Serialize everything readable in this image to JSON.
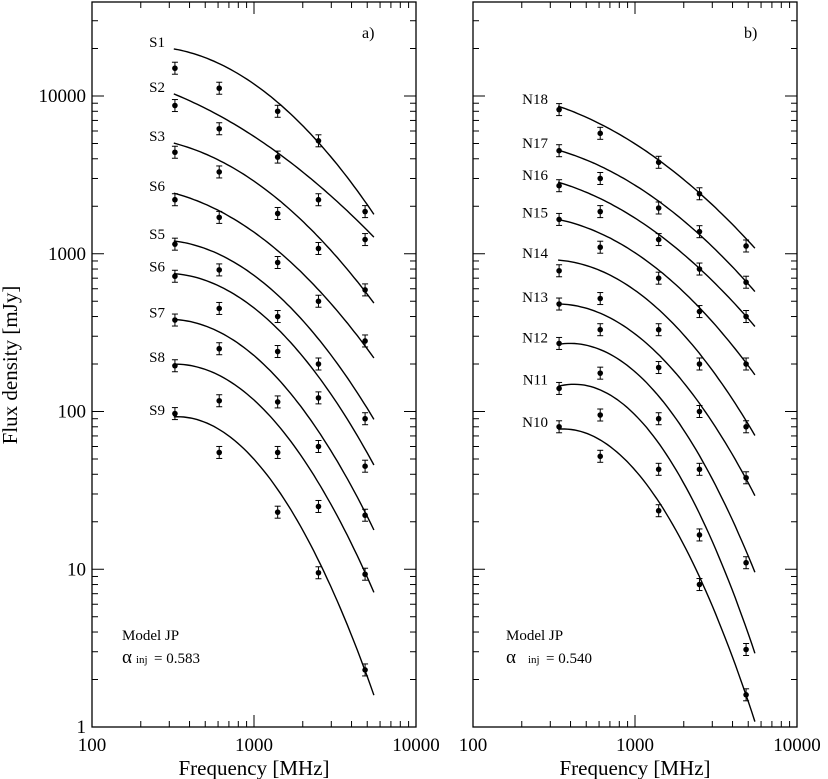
{
  "chart_data": [
    {
      "type": "scatter",
      "panel_label": "a)",
      "xlabel": "Frequency [MHz]",
      "ylabel": "Flux density [mJy]",
      "x_scale": "log",
      "y_scale": "log",
      "xlim": [
        100,
        10000
      ],
      "ylim": [
        1,
        50000
      ],
      "x_tick_labels": [
        "100",
        "1000",
        "10000"
      ],
      "y_tick_labels": [
        "1",
        "10",
        "100",
        "1000",
        "10000"
      ],
      "model_label": "Model JP",
      "alpha_symbol": "α",
      "alpha_sub": "inj",
      "alpha_value": "= 0.583",
      "series": [
        {
          "name": "S1",
          "x": [
            325,
            610,
            1400,
            2500,
            4850
          ],
          "y": [
            15000,
            11200,
            8000,
            5200,
            1850
          ],
          "model": [
            20500,
            15200,
            8800,
            5600,
            2050
          ]
        },
        {
          "name": "S2",
          "x": [
            325,
            610,
            1400,
            2500,
            4850
          ],
          "y": [
            8700,
            6200,
            4100,
            2200,
            1230
          ],
          "model": [
            10200,
            7600,
            4300,
            2750,
            1450
          ]
        },
        {
          "name": "S3",
          "x": [
            325,
            610,
            1400,
            2500,
            4850
          ],
          "y": [
            4400,
            3300,
            1800,
            1080,
            590
          ],
          "model": [
            5100,
            3800,
            2150,
            1370,
            560
          ]
        },
        {
          "name": "S6",
          "x": [
            325,
            610,
            1400,
            2500,
            4850
          ],
          "y": [
            2200,
            1700,
            880,
            500,
            280
          ],
          "model": [
            2450,
            1820,
            1030,
            620,
            255
          ]
        },
        {
          "name": "S5",
          "x": [
            325,
            610,
            1400,
            2500,
            4850
          ],
          "y": [
            1150,
            790,
            400,
            200,
            90
          ],
          "model": [
            1250,
            930,
            530,
            320,
            105
          ]
        },
        {
          "name": "S6",
          "x": [
            325,
            610,
            1400,
            2500,
            4850
          ],
          "y": [
            720,
            450,
            240,
            122,
            45
          ],
          "model": [
            780,
            580,
            325,
            185,
            55
          ]
        },
        {
          "name": "S7",
          "x": [
            325,
            610,
            1400,
            2500,
            4850
          ],
          "y": [
            380,
            250,
            115,
            60,
            22
          ],
          "model": [
            400,
            295,
            160,
            82,
            22
          ]
        },
        {
          "name": "S8",
          "x": [
            325,
            610,
            1400,
            2500,
            4850
          ],
          "y": [
            195,
            117,
            55,
            25,
            9.3
          ],
          "model": [
            210,
            155,
            80,
            40,
            9.0
          ]
        },
        {
          "name": "S9",
          "x": [
            325,
            610,
            1400,
            2500,
            4850
          ],
          "y": [
            97,
            55,
            23,
            9.5,
            2.3
          ],
          "model": [
            97,
            70,
            33,
            12,
            2.2
          ]
        }
      ]
    },
    {
      "type": "scatter",
      "panel_label": "b)",
      "xlabel": "Frequency [MHz]",
      "ylabel": "",
      "x_scale": "log",
      "y_scale": "log",
      "xlim": [
        100,
        10000
      ],
      "ylim": [
        1,
        50000
      ],
      "x_tick_labels": [
        "100",
        "1000",
        "10000"
      ],
      "y_tick_labels": [],
      "model_label": "Model JP",
      "alpha_symbol": "α",
      "alpha_sub": "inj",
      "alpha_value": "= 0.540",
      "series": [
        {
          "name": "N18",
          "x": [
            340,
            610,
            1400,
            2500,
            4850
          ],
          "y": [
            8200,
            5800,
            3800,
            2400,
            1120
          ],
          "model": [
            8700,
            6500,
            3900,
            2500,
            1230
          ]
        },
        {
          "name": "N17",
          "x": [
            340,
            610,
            1400,
            2500,
            4850
          ],
          "y": [
            4500,
            3000,
            1950,
            1380,
            660
          ],
          "model": [
            4600,
            3500,
            2100,
            1400,
            650
          ]
        },
        {
          "name": "N16",
          "x": [
            340,
            610,
            1400,
            2500,
            4850
          ],
          "y": [
            2700,
            1850,
            1230,
            800,
            400
          ],
          "model": [
            2900,
            2150,
            1300,
            860,
            390
          ]
        },
        {
          "name": "N15",
          "x": [
            340,
            610,
            1400,
            2500,
            4850
          ],
          "y": [
            1650,
            1100,
            700,
            430,
            200
          ],
          "model": [
            1700,
            1280,
            760,
            500,
            195
          ]
        },
        {
          "name": "N14",
          "x": [
            340,
            610,
            1400,
            2500,
            4850
          ],
          "y": [
            780,
            520,
            330,
            200,
            80
          ],
          "model": [
            960,
            720,
            420,
            270,
            82
          ]
        },
        {
          "name": "N13",
          "x": [
            340,
            610,
            1400,
            2500,
            4850
          ],
          "y": [
            480,
            330,
            190,
            100,
            38
          ],
          "model": [
            510,
            380,
            220,
            130,
            35
          ]
        },
        {
          "name": "N12",
          "x": [
            340,
            610,
            1400,
            2500,
            4850
          ],
          "y": [
            270,
            175,
            90,
            43,
            11
          ],
          "model": [
            290,
            215,
            120,
            63,
            12
          ]
        },
        {
          "name": "N11",
          "x": [
            340,
            610,
            1400,
            2500,
            4850
          ],
          "y": [
            140,
            95,
            43,
            16.5,
            3.1
          ],
          "model": [
            160,
            115,
            62,
            27,
            3.9
          ]
        },
        {
          "name": "N10",
          "x": [
            340,
            610,
            1400,
            2500,
            4850
          ],
          "y": [
            80,
            52,
            23.5,
            8.0,
            1.6
          ],
          "model": [
            83,
            58,
            27,
            10,
            1.5
          ]
        }
      ]
    }
  ]
}
